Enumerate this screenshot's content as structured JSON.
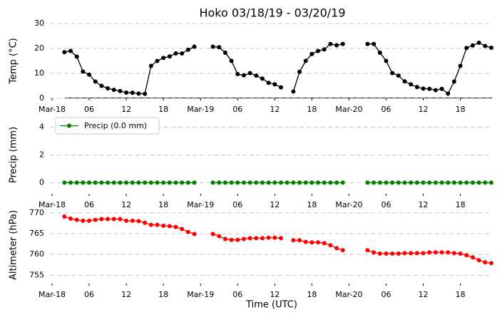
{
  "chart_data": [
    {
      "type": "line",
      "title": "Hoko 03/18/19 - 03/20/19",
      "ylabel": "Temp (°C)",
      "x": [
        2,
        3,
        4,
        5,
        6,
        7,
        8,
        9,
        10,
        11,
        12,
        13,
        14,
        15,
        16,
        17,
        18,
        19,
        20,
        21,
        22,
        23,
        24,
        25,
        26,
        27,
        28,
        29,
        30,
        31,
        32,
        33,
        34,
        35,
        36,
        37,
        38,
        39,
        40,
        41,
        42,
        43,
        44,
        45,
        46,
        47,
        48,
        49,
        50,
        51,
        52,
        53,
        54,
        55,
        56,
        57,
        58,
        59,
        60,
        61,
        62,
        63,
        64,
        65,
        66,
        67,
        68,
        69,
        70,
        71
      ],
      "series": [
        {
          "color": "#000000",
          "values": [
            18.5,
            19,
            16.7,
            10.7,
            9.5,
            6.7,
            5,
            4,
            3.4,
            2.9,
            2.3,
            2.2,
            1.9,
            1.8,
            13,
            15,
            16.2,
            16.8,
            18,
            18,
            19.5,
            20.7,
            null,
            null,
            20.7,
            20.5,
            18.3,
            15,
            9.7,
            9.2,
            10.1,
            9.1,
            7.9,
            6.2,
            5.6,
            4.4,
            null,
            2.7,
            10.6,
            15,
            17.8,
            19,
            19.6,
            21.8,
            21.3,
            21.8,
            null,
            null,
            null,
            21.8,
            21.8,
            18.3,
            15,
            10.1,
            9.1,
            6.8,
            5.6,
            4.5,
            3.9,
            3.8,
            3.3,
            3.8,
            1.9,
            6.7,
            13,
            20.2,
            21.2,
            22.3,
            21,
            20.3
          ]
        }
      ],
      "xlim": [
        0,
        71
      ],
      "xticks": [
        {
          "value": 0,
          "label": "Mar-18"
        },
        {
          "value": 6,
          "label": "06"
        },
        {
          "value": 12,
          "label": "12"
        },
        {
          "value": 18,
          "label": "18"
        },
        {
          "value": 24,
          "label": "Mar-19"
        },
        {
          "value": 30,
          "label": "06"
        },
        {
          "value": 36,
          "label": "12"
        },
        {
          "value": 42,
          "label": "18"
        },
        {
          "value": 48,
          "label": "Mar-20"
        },
        {
          "value": 54,
          "label": "06"
        },
        {
          "value": 60,
          "label": "12"
        },
        {
          "value": 66,
          "label": "18"
        }
      ],
      "ylim": [
        0,
        30
      ],
      "yticks": [
        0,
        10,
        20,
        30
      ],
      "grid": true
    },
    {
      "type": "line",
      "ylabel": "Precip (mm)",
      "legend": "upper left",
      "x": [
        2,
        3,
        4,
        5,
        6,
        7,
        8,
        9,
        10,
        11,
        12,
        13,
        14,
        15,
        16,
        17,
        18,
        19,
        20,
        21,
        22,
        23,
        24,
        25,
        26,
        27,
        28,
        29,
        30,
        31,
        32,
        33,
        34,
        35,
        36,
        37,
        38,
        39,
        40,
        41,
        42,
        43,
        44,
        45,
        46,
        47,
        48,
        49,
        50,
        51,
        52,
        53,
        54,
        55,
        56,
        57,
        58,
        59,
        60,
        61,
        62,
        63,
        64,
        65,
        66,
        67,
        68,
        69,
        70,
        71
      ],
      "series": [
        {
          "name": "Precip (0.0 mm)",
          "color": "#008000",
          "values": [
            0,
            0,
            0,
            0,
            0,
            0,
            0,
            0,
            0,
            0,
            0,
            0,
            0,
            0,
            0,
            0,
            0,
            0,
            0,
            0,
            0,
            0,
            null,
            null,
            0,
            0,
            0,
            0,
            0,
            0,
            0,
            0,
            0,
            0,
            0,
            0,
            0,
            0,
            0,
            0,
            0,
            0,
            0,
            0,
            0,
            0,
            null,
            null,
            null,
            0,
            0,
            0,
            0,
            0,
            0,
            0,
            0,
            0,
            0,
            0,
            0,
            0,
            0,
            0,
            0,
            0,
            0,
            0,
            0,
            0
          ]
        }
      ],
      "xlim": [
        0,
        71
      ],
      "xticks": [
        {
          "value": 0,
          "label": "Mar-18"
        },
        {
          "value": 6,
          "label": "06"
        },
        {
          "value": 12,
          "label": "12"
        },
        {
          "value": 18,
          "label": "18"
        },
        {
          "value": 24,
          "label": "Mar-19"
        },
        {
          "value": 30,
          "label": "06"
        },
        {
          "value": 36,
          "label": "12"
        },
        {
          "value": 42,
          "label": "18"
        },
        {
          "value": 48,
          "label": "Mar-20"
        },
        {
          "value": 54,
          "label": "06"
        },
        {
          "value": 60,
          "label": "12"
        },
        {
          "value": 66,
          "label": "18"
        }
      ],
      "ylim": [
        -0.8,
        4.8
      ],
      "yticks": [
        0,
        2,
        4
      ],
      "grid": true
    },
    {
      "type": "line",
      "ylabel": "Altimeter (hPa)",
      "xlabel": "Time (UTC)",
      "x": [
        2,
        3,
        4,
        5,
        6,
        7,
        8,
        9,
        10,
        11,
        12,
        13,
        14,
        15,
        16,
        17,
        18,
        19,
        20,
        21,
        22,
        23,
        24,
        25,
        26,
        27,
        28,
        29,
        30,
        31,
        32,
        33,
        34,
        35,
        36,
        37,
        38,
        39,
        40,
        41,
        42,
        43,
        44,
        45,
        46,
        47,
        48,
        49,
        50,
        51,
        52,
        53,
        54,
        55,
        56,
        57,
        58,
        59,
        60,
        61,
        62,
        63,
        64,
        65,
        66,
        67,
        68,
        69,
        70,
        71
      ],
      "series": [
        {
          "color": "#ff0000",
          "values": [
            769.1,
            768.6,
            768.3,
            768.1,
            768.1,
            768.3,
            768.5,
            768.5,
            768.5,
            768.5,
            768.1,
            768.1,
            768,
            767.6,
            767.1,
            767.1,
            766.9,
            766.8,
            766.6,
            766.1,
            765.4,
            764.9,
            null,
            null,
            764.9,
            764.4,
            763.7,
            763.5,
            763.5,
            763.7,
            763.9,
            763.9,
            763.9,
            764,
            764,
            763.9,
            null,
            763.4,
            763.4,
            763,
            762.9,
            762.9,
            762.7,
            762.2,
            761.5,
            761,
            null,
            null,
            null,
            761,
            760.5,
            760.2,
            760.2,
            760.2,
            760.2,
            760.3,
            760.3,
            760.3,
            760.3,
            760.5,
            760.5,
            760.5,
            760.5,
            760.3,
            760.2,
            759.8,
            759.3,
            758.6,
            758.1,
            757.9
          ]
        }
      ],
      "xlim": [
        0,
        71
      ],
      "xticks": [
        {
          "value": 0,
          "label": "Mar-18"
        },
        {
          "value": 6,
          "label": "06"
        },
        {
          "value": 12,
          "label": "12"
        },
        {
          "value": 18,
          "label": "18"
        },
        {
          "value": 24,
          "label": "Mar-19"
        },
        {
          "value": 30,
          "label": "06"
        },
        {
          "value": 36,
          "label": "12"
        },
        {
          "value": 42,
          "label": "18"
        },
        {
          "value": 48,
          "label": "Mar-20"
        },
        {
          "value": 54,
          "label": "06"
        },
        {
          "value": 60,
          "label": "12"
        },
        {
          "value": 66,
          "label": "18"
        }
      ],
      "ylim": [
        753,
        771.5
      ],
      "yticks": [
        755,
        760,
        765,
        770
      ],
      "grid": true
    }
  ]
}
